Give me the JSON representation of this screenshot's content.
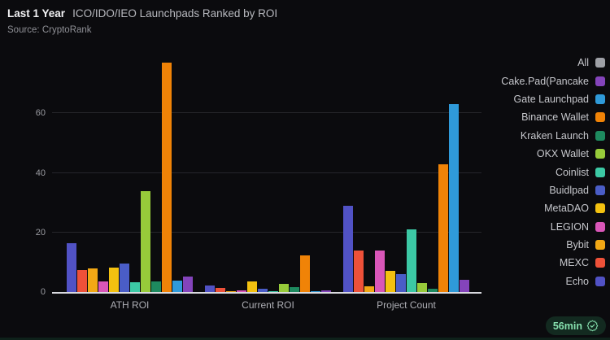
{
  "header": {
    "title_strong": "Last 1 Year",
    "title_rest": "ICO/IDO/IEO Launchpads Ranked by ROI",
    "source": "Source: CryptoRank"
  },
  "badge": {
    "label": "56min",
    "icon": "verified-seal-icon"
  },
  "colors": {
    "background": "#0b0b0e",
    "gridline": "#26262b",
    "axis_line": "#d9dadf",
    "badge_bg": "#132a20",
    "badge_text": "#86e0ae",
    "bottom_strip": "#0e211a"
  },
  "chart_data": {
    "type": "bar",
    "title": "ICO/IDO/IEO Launchpads Ranked by ROI",
    "categories": [
      "ATH ROI",
      "Current ROI",
      "Project Count"
    ],
    "yticks": [
      0,
      20,
      40,
      60
    ],
    "ylim": [
      0,
      80.6
    ],
    "grid": "horizontal",
    "legend_position": "right",
    "bar_order": "reverse-of-legend",
    "legend": [
      {
        "label": "All",
        "color": "#9ea0a6"
      },
      {
        "label": "Cake.Pad(Pancake",
        "color": "#8444bb"
      },
      {
        "label": "Gate Launchpad",
        "color": "#2f9ad9"
      },
      {
        "label": "Binance Wallet",
        "color": "#f08307"
      },
      {
        "label": "Kraken Launch",
        "color": "#1e8a5f"
      },
      {
        "label": "OKX Wallet",
        "color": "#97cb3a"
      },
      {
        "label": "Coinlist",
        "color": "#3cc9a5"
      },
      {
        "label": "Buidlpad",
        "color": "#4a5dc7"
      },
      {
        "label": "MetaDAO",
        "color": "#f3c110"
      },
      {
        "label": "LEGION",
        "color": "#d956b8"
      },
      {
        "label": "Bybit",
        "color": "#f2a815"
      },
      {
        "label": "MEXC",
        "color": "#ee5139"
      },
      {
        "label": "Echo",
        "color": "#5152c5"
      }
    ],
    "series": [
      {
        "name": "Cake.Pad(Pancake",
        "color": "#8444bb",
        "values": [
          5.3,
          0.5,
          4
        ]
      },
      {
        "name": "Gate Launchpad",
        "color": "#2f9ad9",
        "values": [
          3.7,
          0.3,
          63
        ]
      },
      {
        "name": "Binance Wallet",
        "color": "#f08307",
        "values": [
          77,
          12.3,
          43
        ]
      },
      {
        "name": "Kraken Launch",
        "color": "#1e8a5f",
        "values": [
          3.6,
          1.7,
          1
        ]
      },
      {
        "name": "OKX Wallet",
        "color": "#97cb3a",
        "values": [
          34,
          2.7,
          3
        ]
      },
      {
        "name": "Coinlist",
        "color": "#3cc9a5",
        "values": [
          3.3,
          0.3,
          21
        ]
      },
      {
        "name": "Buidlpad",
        "color": "#4a5dc7",
        "values": [
          9.5,
          1.0,
          6
        ]
      },
      {
        "name": "MetaDAO",
        "color": "#f3c110",
        "values": [
          8.3,
          3.5,
          7
        ]
      },
      {
        "name": "LEGION",
        "color": "#d956b8",
        "values": [
          3.6,
          0.6,
          14
        ]
      },
      {
        "name": "Bybit",
        "color": "#f2a815",
        "values": [
          8.0,
          0.4,
          2
        ]
      },
      {
        "name": "MEXC",
        "color": "#ee5139",
        "values": [
          7.3,
          1.4,
          14
        ]
      },
      {
        "name": "Echo",
        "color": "#5152c5",
        "values": [
          16.5,
          2.3,
          29
        ]
      }
    ]
  }
}
